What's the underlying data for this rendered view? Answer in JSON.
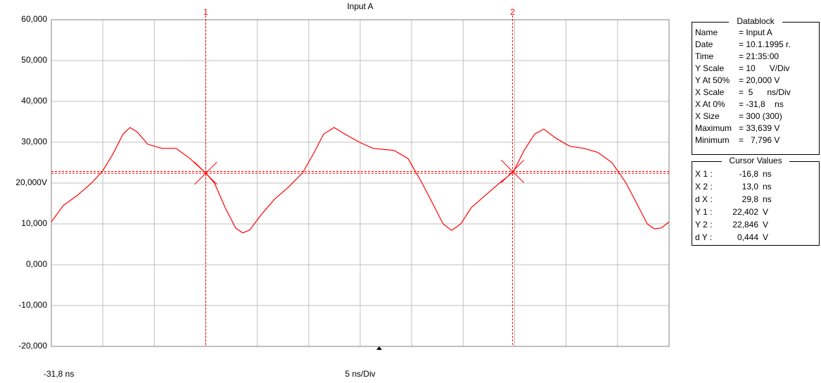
{
  "chart_data": {
    "type": "line",
    "title": "Input A",
    "x_origin_label": "-31,8 ns",
    "x_scale_label": "5 ns/Div",
    "xlim": [
      -31.8,
      28.2
    ],
    "xticks": [
      -31.8,
      -26.8,
      -21.8,
      -16.8,
      -11.8,
      -6.8,
      -1.8,
      3.2,
      8.2,
      13.2,
      18.2,
      23.2,
      28.2
    ],
    "ylim": [
      -20,
      60
    ],
    "yticks": [
      {
        "value": -20,
        "label": "-20,000"
      },
      {
        "value": -10,
        "label": "-10,000"
      },
      {
        "value": 0,
        "label": "0,000"
      },
      {
        "value": 10,
        "label": "10,000"
      },
      {
        "value": 20,
        "label": "20,000V"
      },
      {
        "value": 30,
        "label": "30,000"
      },
      {
        "value": 40,
        "label": "40,000"
      },
      {
        "value": 50,
        "label": "50,000"
      },
      {
        "value": 60,
        "label": "60,000"
      }
    ],
    "grid": true,
    "x": [
      -31.8,
      -30.64,
      -29.27,
      -27.9,
      -26.81,
      -25.85,
      -24.83,
      -24.15,
      -23.46,
      -22.44,
      -21.07,
      -19.7,
      -18.34,
      -16.83,
      -15.95,
      -14.92,
      -13.9,
      -13.21,
      -12.53,
      -11.5,
      -10.14,
      -8.77,
      -7.4,
      -6.38,
      -5.35,
      -4.33,
      -3.3,
      -1.87,
      -0.57,
      1.48,
      2.85,
      4.21,
      5.24,
      6.26,
      7.08,
      7.97,
      9.0,
      10.36,
      11.73,
      13.1,
      14.12,
      15.15,
      16.04,
      17.2,
      18.56,
      19.93,
      21.3,
      22.66,
      24.03,
      25.06,
      26.08,
      26.77,
      27.45,
      28.2
    ],
    "series": [
      {
        "name": "Input A",
        "color": "#ff0000",
        "values": [
          10.5,
          14.5,
          17,
          20,
          23,
          27,
          32,
          33.6,
          32.5,
          29.5,
          28.5,
          28.5,
          26,
          22.5,
          20,
          14,
          9,
          7.8,
          8.5,
          12,
          16,
          19,
          22.5,
          27,
          32,
          33.6,
          32,
          30,
          28.5,
          28,
          26,
          20,
          15,
          10,
          8.4,
          10,
          14,
          17,
          20,
          22.8,
          28,
          32,
          33.2,
          31,
          29,
          28.5,
          27.5,
          25,
          20,
          15,
          10,
          8.8,
          9,
          10.5
        ]
      }
    ],
    "cursors": [
      {
        "label": "1",
        "x": -16.8,
        "y": 22.402
      },
      {
        "label": "2",
        "x": 13.0,
        "y": 22.846
      }
    ],
    "cursor_color": "#ff0000"
  },
  "datablock": {
    "title": "Datablock",
    "rows": [
      [
        "Name",
        "= Input A"
      ],
      [
        "Date",
        "= 10.1.1995 r."
      ],
      [
        "Time",
        "= 21:35:00"
      ],
      [
        "Y Scale",
        "= 10      V/Div"
      ],
      [
        "Y At 50%",
        "= 20,000 V"
      ],
      [
        "X Scale",
        "=  5      ns/Div"
      ],
      [
        "X At 0%",
        "= -31,8    ns"
      ],
      [
        "X Size",
        "= 300 (300)"
      ],
      [
        "Maximum",
        "= 33,639 V"
      ],
      [
        "Minimum",
        "=   7,796 V"
      ]
    ]
  },
  "cursor_values": {
    "title": "Cursor Values",
    "rows": [
      [
        "X 1 :",
        "-16,8",
        "ns"
      ],
      [
        "X 2 :",
        "13,0",
        "ns"
      ],
      [
        "d X :",
        "29,8",
        "ns"
      ],
      [
        "Y 1 :",
        "22,402",
        "V"
      ],
      [
        "Y 2 :",
        "22,846",
        "V"
      ],
      [
        "d Y :",
        "0,444",
        "V"
      ]
    ]
  }
}
